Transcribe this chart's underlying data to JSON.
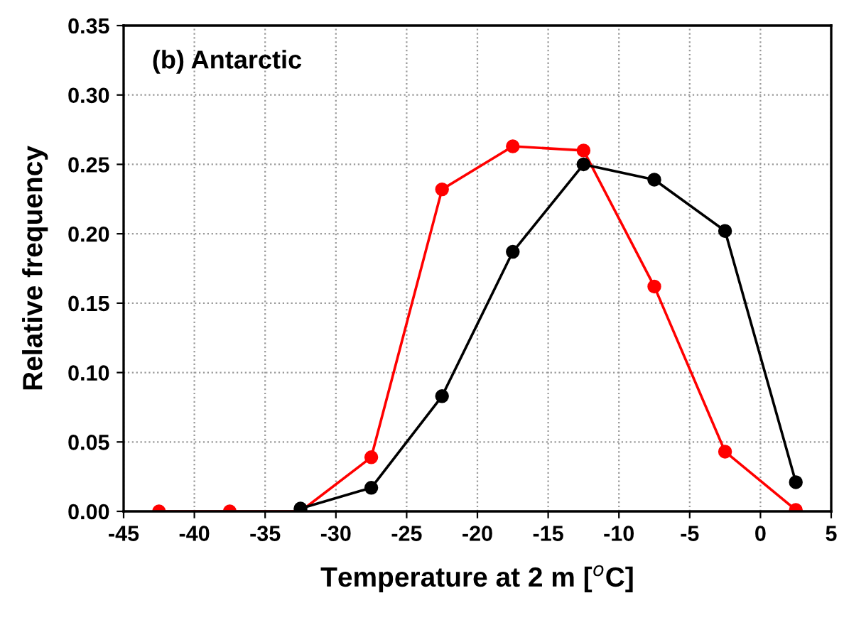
{
  "chart_data": {
    "type": "line",
    "xlabel": "Temperature at 2 m [$^{o}$C]",
    "ylabel": "Relative frequency",
    "annotations": [
      "(b) Antarctic"
    ],
    "series": [
      {
        "color": "#ff0000",
        "x": [
          -42.5,
          -37.5,
          -32.5,
          -27.5,
          -22.5,
          -17.5,
          -12.5,
          -7.5,
          -2.5,
          2.5
        ],
        "values": [
          0.0,
          0.0,
          0.0,
          0.039,
          0.232,
          0.263,
          0.26,
          0.162,
          0.043,
          0.001
        ]
      },
      {
        "color": "#000000",
        "x": [
          -32.5,
          -27.5,
          -22.5,
          -17.5,
          -12.5,
          -7.5,
          -2.5,
          2.5
        ],
        "values": [
          0.002,
          0.017,
          0.083,
          0.187,
          0.25,
          0.239,
          0.202,
          0.021
        ]
      }
    ],
    "xlim": [
      -45,
      5
    ],
    "xticks": [
      -45,
      -40,
      -35,
      -30,
      -25,
      -20,
      -15,
      -10,
      -5,
      0,
      5
    ],
    "ylim": [
      0,
      0.35
    ],
    "yticks": [
      {
        "value": 0,
        "label": "0.00"
      },
      {
        "value": 0.05,
        "label": "0.05"
      },
      {
        "value": 0.1,
        "label": "0.10"
      },
      {
        "value": 0.15,
        "label": "0.15"
      },
      {
        "value": 0.2,
        "label": "0.20"
      },
      {
        "value": 0.25,
        "label": "0.25"
      },
      {
        "value": 0.3,
        "label": "0.30"
      },
      {
        "value": 0.35,
        "label": "0.35"
      }
    ],
    "grid": true,
    "marker": "circle",
    "line_style": "solid"
  }
}
